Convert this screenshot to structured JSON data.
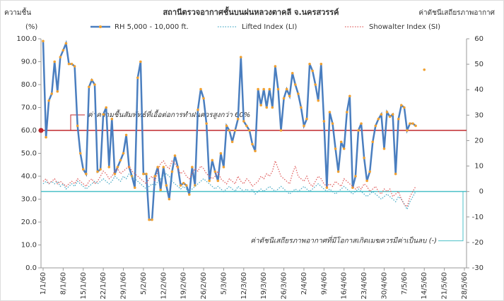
{
  "chart_data": {
    "type": "line",
    "title": "สถานีตรวจอากาศชั้นบนฝนหลวงตาคลี จ.นครสวรรค์",
    "y_label": "ความชื้น",
    "y_unit": "(%)",
    "y2_label": "ค่าดัชนีเสถียรภาพอากาศ",
    "categories": [
      "1/1/60",
      null,
      null,
      null,
      null,
      null,
      null,
      "8/1/60",
      null,
      null,
      null,
      null,
      null,
      null,
      "15/1/60",
      null,
      null,
      null,
      null,
      null,
      null,
      "22/1/60",
      null,
      null,
      null,
      null,
      null,
      null,
      "29/1/60",
      null,
      null,
      null,
      null,
      null,
      null,
      "5/2/60",
      null,
      null,
      null,
      null,
      null,
      null,
      "12/2/60",
      null,
      null,
      null,
      null,
      null,
      null,
      "19/2/60",
      null,
      null,
      null,
      null,
      null,
      null,
      "26/2/60",
      null,
      null,
      null,
      null,
      null,
      null,
      "5/3/60",
      null,
      null,
      null,
      null,
      null,
      null,
      "12/3/60",
      null,
      null,
      null,
      null,
      null,
      null,
      "19/3/60",
      null,
      null,
      null,
      null,
      null,
      null,
      "26/3/60",
      null,
      null,
      null,
      null,
      null,
      null,
      "2/4/60",
      null,
      null,
      null,
      null,
      null,
      null,
      "9/4/60",
      null,
      null,
      null,
      null,
      null,
      null,
      "16/4/60",
      null,
      null,
      null,
      null,
      null,
      null,
      "23/4/60",
      null,
      null,
      null,
      null,
      null,
      null,
      "30/4/60",
      null,
      null,
      null,
      null,
      null,
      null,
      "7/5/60",
      null,
      null,
      null,
      null,
      null,
      null,
      "14/5/60",
      null,
      null,
      null,
      null,
      null,
      null,
      "21/5/60",
      null,
      null,
      null,
      null,
      null,
      null,
      "28/5/60"
    ],
    "series": [
      {
        "name": "RH 5,000 - 10,000 ft.",
        "color": "#4a7ebf",
        "marker_color": "#f0a030",
        "axis": "y",
        "values": [
          99,
          57,
          73,
          76,
          90,
          77,
          92,
          95,
          98,
          89,
          89,
          88,
          62,
          50,
          43,
          41,
          79,
          82,
          80,
          42,
          43,
          67,
          70,
          44,
          65,
          41,
          44,
          47,
          50,
          58,
          44,
          40,
          35,
          83,
          90,
          41,
          41,
          21,
          21,
          40,
          44,
          34,
          44,
          36,
          30,
          42,
          49,
          44,
          36,
          37,
          36,
          32,
          44,
          36,
          69,
          78,
          74,
          63,
          38,
          47,
          42,
          38,
          50,
          44,
          62,
          60,
          55,
          60,
          65,
          92,
          64,
          62,
          60,
          54,
          51,
          78,
          71,
          78,
          70,
          78,
          70,
          88,
          78,
          60,
          74,
          78,
          75,
          85,
          80,
          76,
          70,
          62,
          65,
          89,
          86,
          80,
          73,
          89,
          64,
          35,
          68,
          63,
          52,
          42,
          55,
          52,
          68,
          75,
          35,
          40,
          60,
          63,
          48,
          38,
          42,
          55,
          62,
          65,
          67,
          52,
          68,
          66,
          67,
          41,
          65,
          71,
          70,
          60,
          63,
          63,
          62,
          null,
          null,
          86.5,
          null,
          null,
          null,
          null,
          null,
          null,
          null,
          null,
          null,
          null,
          null,
          null,
          null,
          null
        ]
      },
      {
        "name": "Lifted Index (LI)",
        "color": "#4bacc6",
        "axis": "y2",
        "values": [
          3,
          4,
          3,
          4,
          3,
          4,
          2,
          3,
          1,
          2,
          3,
          2,
          4,
          3,
          2,
          1,
          2,
          3,
          4,
          3,
          4,
          5,
          4,
          3,
          4,
          6,
          5,
          4,
          6,
          5,
          7,
          6,
          5,
          4,
          3,
          2,
          1,
          2,
          3,
          2,
          4,
          5,
          6,
          7,
          6,
          4,
          3,
          2,
          1,
          2,
          1,
          0,
          1,
          2,
          3,
          4,
          5,
          4,
          3,
          2,
          1,
          2,
          1,
          0,
          1,
          2,
          1,
          0,
          2,
          1,
          0,
          1,
          0,
          1,
          -1,
          0,
          1,
          0,
          1,
          2,
          1,
          0,
          1,
          2,
          1,
          0,
          -1,
          0,
          1,
          0,
          1,
          2,
          1,
          0,
          1,
          2,
          3,
          2,
          1,
          0,
          1,
          0,
          -1,
          0,
          1,
          2,
          1,
          0,
          -1,
          0,
          1,
          0,
          -1,
          -2,
          -1,
          0,
          -1,
          -2,
          -3,
          -2,
          -1,
          -2,
          -3,
          -4,
          -2,
          -3,
          -5,
          -7,
          -4,
          -2,
          0,
          null,
          null,
          null,
          null,
          null,
          null,
          null,
          null,
          null,
          null,
          null,
          null,
          null,
          null,
          null,
          null,
          null
        ]
      },
      {
        "name": "Showalter Index (SI)",
        "color": "#e06060",
        "axis": "y2",
        "values": [
          4,
          5,
          3,
          4,
          5,
          3,
          4,
          3,
          2,
          3,
          4,
          3,
          5,
          4,
          3,
          2,
          4,
          5,
          3,
          4,
          6,
          8,
          7,
          5,
          6,
          8,
          9,
          7,
          8,
          9,
          10,
          8,
          7,
          6,
          5,
          4,
          3,
          5,
          6,
          4,
          8,
          11,
          12,
          10,
          9,
          12,
          11,
          9,
          7,
          8,
          6,
          5,
          7,
          9,
          8,
          10,
          9,
          7,
          6,
          5,
          6,
          8,
          5,
          4,
          3,
          5,
          4,
          3,
          6,
          4,
          3,
          5,
          4,
          2,
          3,
          4,
          6,
          5,
          7,
          6,
          8,
          12,
          9,
          6,
          5,
          4,
          3,
          7,
          10,
          6,
          5,
          4,
          6,
          3,
          2,
          4,
          6,
          5,
          3,
          2,
          3,
          2,
          4,
          3,
          2,
          5,
          4,
          3,
          2,
          1,
          2,
          1,
          3,
          2,
          0,
          1,
          2,
          0,
          -1,
          1,
          0,
          1,
          -2,
          -1,
          0,
          -3,
          -5,
          -6,
          -2,
          0,
          2,
          null,
          null,
          null,
          null,
          null,
          null,
          null,
          null,
          null,
          null,
          null,
          null,
          null,
          null,
          null,
          null,
          null
        ]
      }
    ],
    "ylim": [
      0,
      100
    ],
    "yticks": [
      {
        "value": 0,
        "label": "0.0"
      },
      {
        "value": 10,
        "label": "10.0"
      },
      {
        "value": 20,
        "label": "20.0"
      },
      {
        "value": 30,
        "label": "30.0"
      },
      {
        "value": 40,
        "label": "40.0"
      },
      {
        "value": 50,
        "label": "50.0"
      },
      {
        "value": 60,
        "label": "60.0"
      },
      {
        "value": 70,
        "label": "70.0"
      },
      {
        "value": 80,
        "label": "80.0"
      },
      {
        "value": 90,
        "label": "90.0"
      },
      {
        "value": 100,
        "label": "100.0"
      }
    ],
    "y2lim": [
      -30,
      60
    ],
    "y2ticks": [
      -30,
      -20,
      -10,
      0,
      10,
      20,
      30,
      40,
      50,
      60
    ],
    "reference_lines": [
      {
        "value": 60,
        "axis": "y",
        "color": "#c0282d",
        "label": "ค่าความชื้นสัมพัทธ์ที่เอื้อต่อการทำฝนควรสูงกว่า 60%"
      },
      {
        "value": 0,
        "axis": "y2",
        "color": "#4bc0c8",
        "label": "ค่าดัชนีเสถียรภาพอากาศที่มีโอกาสเกิดเมฆควรมีค่าเป็นลบ (-)"
      }
    ]
  }
}
